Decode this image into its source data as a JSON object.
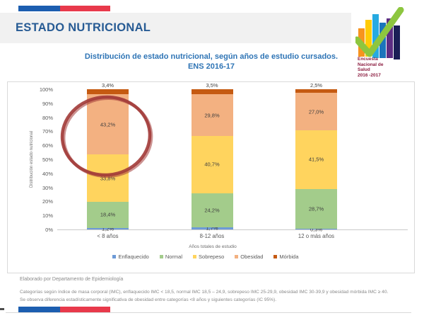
{
  "header": {
    "title": "ESTADO NUTRICIONAL"
  },
  "logo": {
    "lines": [
      "Encuesta",
      "Nacional de",
      "Salud",
      "2016 -2017"
    ]
  },
  "chart_data": {
    "type": "bar",
    "stacked": true,
    "title": "Distribución de estado nutricional, según años de estudio cursados.",
    "subtitle": "ENS 2016-17",
    "categories": [
      "< 8 años",
      "8-12 años",
      "12 o más años"
    ],
    "xlabel": "Años totales de estudio",
    "ylabel": "Distribución estado nutricional",
    "ylim": [
      0,
      100
    ],
    "ytick_step": 10,
    "ytick_suffix": "%",
    "grid": false,
    "legend_position": "bottom",
    "series": [
      {
        "key": "enflaquecido",
        "name": "Enflaquecido",
        "color": "#6D9AD7",
        "values": [
          1.2,
          1.7,
          0.3
        ],
        "labels": [
          "1,2%",
          "1,7%",
          "0,3%"
        ]
      },
      {
        "key": "normal",
        "name": "Normal",
        "color": "#A3CC8B",
        "values": [
          18.4,
          24.2,
          28.7
        ],
        "labels": [
          "18,4%",
          "24,2%",
          "28,7%"
        ]
      },
      {
        "key": "sobrepeso",
        "name": "Sobrepeso",
        "color": "#FFD45E",
        "values": [
          33.8,
          40.7,
          41.5
        ],
        "labels": [
          "33,8%",
          "40,7%",
          "41,5%"
        ]
      },
      {
        "key": "obesidad",
        "name": "Obesidad",
        "color": "#F3B181",
        "values": [
          43.2,
          29.8,
          27.0
        ],
        "labels": [
          "43,2%",
          "29,8%",
          "27,0%"
        ]
      },
      {
        "key": "morbida",
        "name": "Mórbida",
        "color": "#C55A11",
        "values": [
          3.4,
          3.5,
          2.5
        ],
        "labels": [
          "3,4%",
          "3,5%",
          "2,5%"
        ],
        "label_outside": true
      }
    ],
    "annotation": {
      "shape": "ellipse",
      "target": "obesidad < 8 años 43,2%",
      "color": "#A23B38"
    }
  },
  "footer": {
    "line1": "Elaborado por Departamento de Epidemiología",
    "line2": "Categorías según índice de masa corporal (IMC), enflaquecido IMC < 18,5, normal IMC 18,5 – 24,9, sobrepeso IMC 25-29,9, obesidad IMC 30-39,9 y obesidad mórbida IMC ≥ 40.",
    "line3": "Se observa diferencia estadísticamente significativa de obesidad entre categorías <8 años y siguientes categorías (IC 95%)."
  },
  "colors": {
    "accent_blue": "#2E74B5",
    "header_blue": "#275B94",
    "flag_blue": "#1C5EB0",
    "flag_red": "#E8394B",
    "annotation_red": "#A23B38",
    "logo_text": "#8C1D40",
    "logo_check": "#8DC63F"
  }
}
